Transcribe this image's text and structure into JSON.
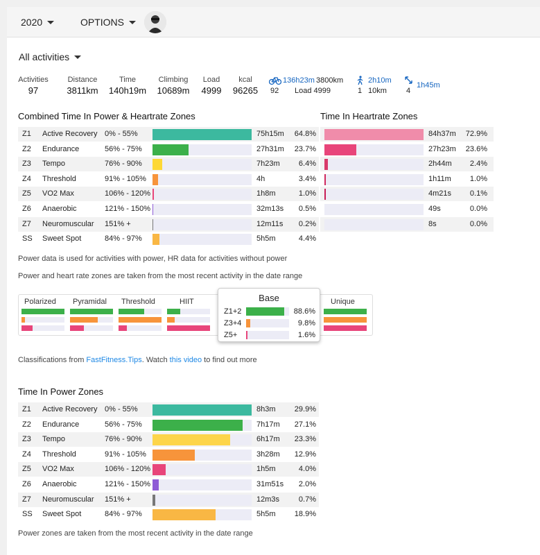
{
  "topbar": {
    "year": "2020",
    "options": "OPTIONS"
  },
  "filter": {
    "label": "All activities"
  },
  "stats": [
    {
      "label": "Activities",
      "value": "97"
    },
    {
      "label": "Distance",
      "value": "3811km"
    },
    {
      "label": "Time",
      "value": "140h19m"
    },
    {
      "label": "Climbing",
      "value": "10689m"
    },
    {
      "label": "Load",
      "value": "4999"
    },
    {
      "label": "kcal",
      "value": "96265"
    }
  ],
  "sports": {
    "ride": {
      "icon": "bike-icon",
      "time": "136h23m",
      "distance": "3800km",
      "count": "92",
      "load": "Load 4999"
    },
    "walk": {
      "icon": "walk-icon",
      "time": "2h10m",
      "count": "1",
      "distance": "10km"
    },
    "other": {
      "icon": "arrows-icon",
      "time": "1h45m",
      "count": "4"
    }
  },
  "combined": {
    "title": "Combined Time In Power & Heartrate Zones",
    "rows": [
      {
        "zone": "Z1",
        "name": "Active Recovery",
        "range": "0% - 55%",
        "time": "75h15m",
        "pct": "64.8%",
        "frac": 1.0,
        "color": "#3cb99f"
      },
      {
        "zone": "Z2",
        "name": "Endurance",
        "range": "56% - 75%",
        "time": "27h31m",
        "pct": "23.7%",
        "frac": 0.366,
        "color": "#3cb04a"
      },
      {
        "zone": "Z3",
        "name": "Tempo",
        "range": "76% - 90%",
        "time": "7h23m",
        "pct": "6.4%",
        "frac": 0.099,
        "color": "#fdd835"
      },
      {
        "zone": "Z4",
        "name": "Threshold",
        "range": "91% - 105%",
        "time": "4h",
        "pct": "3.4%",
        "frac": 0.053,
        "color": "#f7943b"
      },
      {
        "zone": "Z5",
        "name": "VO2 Max",
        "range": "106% - 120%",
        "time": "1h8m",
        "pct": "1.0%",
        "frac": 0.015,
        "color": "#e8457a"
      },
      {
        "zone": "Z6",
        "name": "Anaerobic",
        "range": "121% - 150%",
        "time": "32m13s",
        "pct": "0.5%",
        "frac": 0.008,
        "color": "#8e5bd6"
      },
      {
        "zone": "Z7",
        "name": "Neuromuscular",
        "range": "151% +",
        "time": "12m11s",
        "pct": "0.2%",
        "frac": 0.004,
        "color": "#777777"
      },
      {
        "zone": "SS",
        "name": "Sweet Spot",
        "range": "84% - 97%",
        "time": "5h5m",
        "pct": "4.4%",
        "frac": 0.068,
        "color": "#f9b744"
      }
    ]
  },
  "hr": {
    "title": "Time In Heartrate Zones",
    "rows": [
      {
        "time": "84h37m",
        "pct": "72.9%",
        "frac": 1.0,
        "color": "#f08caa"
      },
      {
        "time": "27h23m",
        "pct": "23.6%",
        "frac": 0.324,
        "color": "#e8457a"
      },
      {
        "time": "2h44m",
        "pct": "2.4%",
        "frac": 0.034,
        "color": "#d83a6a"
      },
      {
        "time": "1h11m",
        "pct": "1.0%",
        "frac": 0.014,
        "color": "#d0295e"
      },
      {
        "time": "4m21s",
        "pct": "0.1%",
        "frac": 0.004,
        "color": "#c81d55"
      },
      {
        "time": "49s",
        "pct": "0.0%",
        "frac": 0.0,
        "color": "#c01550"
      },
      {
        "time": "8s",
        "pct": "0.0%",
        "frac": 0.0,
        "color": "#b8104a"
      }
    ]
  },
  "notes": {
    "data": "Power data is used for activities with power, HR data for activities without power",
    "zones": "Power and heart rate zones are taken from the most recent activity in the date range"
  },
  "classifications": {
    "items": [
      {
        "label": "Polarized",
        "bars": [
          1.0,
          0.08,
          0.25
        ]
      },
      {
        "label": "Pyramidal",
        "bars": [
          1.0,
          0.65,
          0.33
        ]
      },
      {
        "label": "Threshold",
        "bars": [
          0.6,
          1.0,
          0.2
        ]
      },
      {
        "label": "HIIT",
        "bars": [
          0.3,
          0.18,
          1.0
        ]
      },
      {
        "label": "Unique",
        "bars": [
          1.0,
          1.0,
          1.0
        ]
      }
    ],
    "tooltip": {
      "title": "Base",
      "rows": [
        {
          "zone": "Z1+2",
          "pct": "88.6%",
          "frac": 0.886,
          "color": "#3cb04a"
        },
        {
          "zone": "Z3+4",
          "pct": "9.8%",
          "frac": 0.098,
          "color": "#f7943b"
        },
        {
          "zone": "Z5+",
          "pct": "1.6%",
          "frac": 0.016,
          "color": "#e8457a"
        }
      ]
    },
    "note_prefix": "Classifications from ",
    "link1": "FastFitness.Tips",
    "note_mid": ". Watch ",
    "link2": "this video",
    "note_suffix": " to find out more"
  },
  "power": {
    "title": "Time In Power Zones",
    "rows": [
      {
        "zone": "Z1",
        "name": "Active Recovery",
        "range": "0% - 55%",
        "time": "8h3m",
        "pct": "29.9%",
        "frac": 1.0,
        "color": "#3cb99f"
      },
      {
        "zone": "Z2",
        "name": "Endurance",
        "range": "56% - 75%",
        "time": "7h17m",
        "pct": "27.1%",
        "frac": 0.906,
        "color": "#3cb04a"
      },
      {
        "zone": "Z3",
        "name": "Tempo",
        "range": "76% - 90%",
        "time": "6h17m",
        "pct": "23.3%",
        "frac": 0.78,
        "color": "#fdd54a"
      },
      {
        "zone": "Z4",
        "name": "Threshold",
        "range": "91% - 105%",
        "time": "3h28m",
        "pct": "12.9%",
        "frac": 0.43,
        "color": "#f7943b"
      },
      {
        "zone": "Z5",
        "name": "VO2 Max",
        "range": "106% - 120%",
        "time": "1h5m",
        "pct": "4.0%",
        "frac": 0.134,
        "color": "#e8457a"
      },
      {
        "zone": "Z6",
        "name": "Anaerobic",
        "range": "121% - 150%",
        "time": "31m51s",
        "pct": "2.0%",
        "frac": 0.066,
        "color": "#8e5bd6"
      },
      {
        "zone": "Z7",
        "name": "Neuromuscular",
        "range": "151% +",
        "time": "12m3s",
        "pct": "0.7%",
        "frac": 0.025,
        "color": "#777777"
      },
      {
        "zone": "SS",
        "name": "Sweet Spot",
        "range": "84% - 97%",
        "time": "5h5m",
        "pct": "18.9%",
        "frac": 0.633,
        "color": "#f9b744"
      }
    ],
    "note": "Power zones are taken from the most recent activity in the date range"
  }
}
